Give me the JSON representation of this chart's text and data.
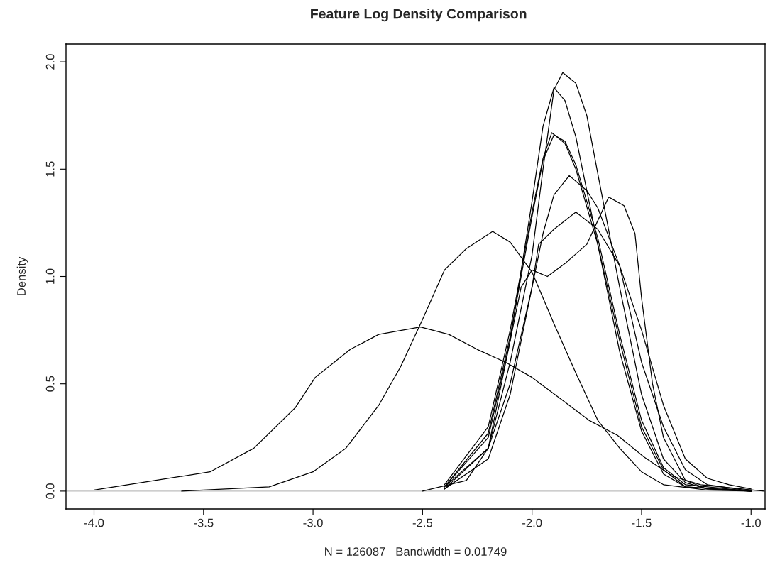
{
  "chart_data": {
    "type": "line",
    "title": "Feature Log Density Comparison",
    "xlabel": "N = 126087   Bandwidth = 0.01749",
    "ylabel": "Density",
    "xlim": [
      -4.128,
      -0.936
    ],
    "ylim": [
      -0.083,
      2.083
    ],
    "xticks": [
      {
        "value": -4.0,
        "label": "-4.0"
      },
      {
        "value": -3.5,
        "label": "-3.5"
      },
      {
        "value": -3.0,
        "label": "-3.0"
      },
      {
        "value": -2.5,
        "label": "-2.5"
      },
      {
        "value": -2.0,
        "label": "-2.0"
      },
      {
        "value": -1.5,
        "label": "-1.5"
      },
      {
        "value": -1.0,
        "label": "-1.0"
      }
    ],
    "yticks": [
      {
        "value": 0.0,
        "label": "0.0"
      },
      {
        "value": 0.5,
        "label": "0.5"
      },
      {
        "value": 1.0,
        "label": "1.0"
      },
      {
        "value": 1.5,
        "label": "1.5"
      },
      {
        "value": 2.0,
        "label": "2.0"
      }
    ],
    "grid": false,
    "legend": false,
    "line_style": "solid",
    "ref_lines": [
      {
        "axis": "y",
        "value": 0,
        "color": "#bebebe"
      }
    ],
    "series": [
      {
        "color": "#000000",
        "x": [
          -4.0,
          -3.47,
          -3.27,
          -3.08,
          -2.99,
          -2.83,
          -2.7,
          -2.51,
          -2.38,
          -2.25,
          -2.12,
          -2.0,
          -1.87,
          -1.74,
          -1.61,
          -1.49,
          -1.36,
          -1.23,
          -1.04,
          -0.94
        ],
        "values": [
          0.005,
          0.09,
          0.2,
          0.39,
          0.53,
          0.66,
          0.73,
          0.765,
          0.73,
          0.66,
          0.6,
          0.53,
          0.43,
          0.33,
          0.26,
          0.16,
          0.07,
          0.03,
          0.01,
          0.0
        ]
      },
      {
        "color": "#000000",
        "x": [
          -3.6,
          -3.2,
          -3.0,
          -2.85,
          -2.7,
          -2.6,
          -2.5,
          -2.4,
          -2.3,
          -2.18,
          -2.1,
          -2.0,
          -1.9,
          -1.8,
          -1.7,
          -1.6,
          -1.5,
          -1.4,
          -1.2,
          -1.0
        ],
        "values": [
          0.0,
          0.02,
          0.09,
          0.2,
          0.4,
          0.58,
          0.8,
          1.03,
          1.13,
          1.21,
          1.16,
          1.02,
          0.78,
          0.55,
          0.33,
          0.2,
          0.09,
          0.03,
          0.005,
          0.0
        ]
      },
      {
        "color": "#000000",
        "x": [
          -2.5,
          -2.3,
          -2.2,
          -2.1,
          -2.0,
          -1.95,
          -1.9,
          -1.86,
          -1.8,
          -1.75,
          -1.7,
          -1.6,
          -1.5,
          -1.4,
          -1.3,
          -1.2,
          -1.0
        ],
        "values": [
          0.0,
          0.05,
          0.2,
          0.6,
          1.1,
          1.5,
          1.87,
          1.95,
          1.9,
          1.75,
          1.48,
          0.95,
          0.45,
          0.15,
          0.04,
          0.01,
          0.0
        ]
      },
      {
        "color": "#000000",
        "x": [
          -2.4,
          -2.2,
          -2.1,
          -2.0,
          -1.95,
          -1.9,
          -1.85,
          -1.8,
          -1.7,
          -1.6,
          -1.5,
          -1.4,
          -1.3,
          -1.0
        ],
        "values": [
          0.02,
          0.25,
          0.7,
          1.35,
          1.7,
          1.88,
          1.82,
          1.65,
          1.15,
          0.65,
          0.28,
          0.08,
          0.02,
          0.0
        ]
      },
      {
        "color": "#000000",
        "x": [
          -2.4,
          -2.2,
          -2.1,
          -2.0,
          -1.95,
          -1.91,
          -1.85,
          -1.8,
          -1.7,
          -1.6,
          -1.5,
          -1.4,
          -1.3,
          -1.0
        ],
        "values": [
          0.03,
          0.3,
          0.75,
          1.3,
          1.55,
          1.67,
          1.62,
          1.5,
          1.15,
          0.7,
          0.3,
          0.1,
          0.02,
          0.0
        ]
      },
      {
        "color": "#000000",
        "x": [
          -2.4,
          -2.2,
          -2.1,
          -2.0,
          -1.95,
          -1.9,
          -1.85,
          -1.8,
          -1.7,
          -1.6,
          -1.5,
          -1.4,
          -1.3,
          -1.0
        ],
        "values": [
          0.02,
          0.27,
          0.72,
          1.28,
          1.54,
          1.66,
          1.63,
          1.52,
          1.18,
          0.73,
          0.33,
          0.11,
          0.03,
          0.0
        ]
      },
      {
        "color": "#000000",
        "x": [
          -2.4,
          -2.2,
          -2.1,
          -2.0,
          -1.95,
          -1.9,
          -1.83,
          -1.75,
          -1.7,
          -1.6,
          -1.5,
          -1.4,
          -1.3,
          -1.2,
          -1.0
        ],
        "values": [
          0.02,
          0.2,
          0.5,
          0.95,
          1.2,
          1.38,
          1.47,
          1.4,
          1.32,
          1.05,
          0.6,
          0.3,
          0.1,
          0.03,
          0.0
        ]
      },
      {
        "color": "#000000",
        "x": [
          -2.4,
          -2.2,
          -2.1,
          -2.0,
          -1.97,
          -1.9,
          -1.8,
          -1.7,
          -1.6,
          -1.5,
          -1.4,
          -1.3,
          -1.2,
          -1.1,
          -1.0
        ],
        "values": [
          0.01,
          0.15,
          0.45,
          0.95,
          1.15,
          1.22,
          1.3,
          1.22,
          1.05,
          0.75,
          0.4,
          0.15,
          0.06,
          0.03,
          0.01
        ]
      },
      {
        "color": "#000000",
        "x": [
          -2.4,
          -2.2,
          -2.1,
          -2.05,
          -2.0,
          -1.93,
          -1.85,
          -1.75,
          -1.7,
          -1.65,
          -1.58,
          -1.53,
          -1.5,
          -1.45,
          -1.4,
          -1.3,
          -1.2,
          -1.0
        ],
        "values": [
          0.01,
          0.2,
          0.7,
          0.95,
          1.03,
          1.0,
          1.06,
          1.15,
          1.26,
          1.37,
          1.33,
          1.2,
          0.9,
          0.5,
          0.25,
          0.05,
          0.01,
          0.0
        ]
      }
    ]
  }
}
